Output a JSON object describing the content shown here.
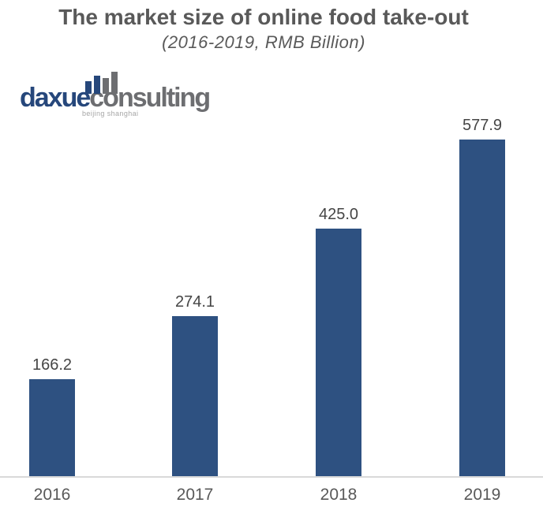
{
  "header": {
    "title": "The market size of online food take-out",
    "subtitle": "(2016-2019, RMB Billion)",
    "text_color": "#595959"
  },
  "logo": {
    "name_primary": "daxue",
    "name_secondary": "consulting",
    "tagline": "beijing shanghai",
    "colors": {
      "primary_blue": "#26477b",
      "secondary_gray": "#6d6e71",
      "tagline_gray": "#a6a6a6",
      "icon_bar_colors": [
        "#26477b",
        "#26477b",
        "#6d6e71",
        "#6d6e71"
      ]
    }
  },
  "chart_data": {
    "type": "bar",
    "title": "The market size of online food take-out",
    "subtitle": "(2016-2019, RMB Billion)",
    "unit": "RMB Billion",
    "categories": [
      "2016",
      "2017",
      "2018",
      "2019"
    ],
    "values": [
      166.2,
      274.1,
      425.0,
      577.9
    ],
    "value_labels": [
      "166.2",
      "274.1",
      "425.0",
      "577.9"
    ],
    "ylim": [
      0,
      630
    ],
    "grid": false,
    "legend": false,
    "y_axis_visible": false,
    "bar_color": "#2e5181",
    "value_label_color": "#454545",
    "category_label_color": "#595959",
    "axis_line_color": "#d9d9d9"
  }
}
